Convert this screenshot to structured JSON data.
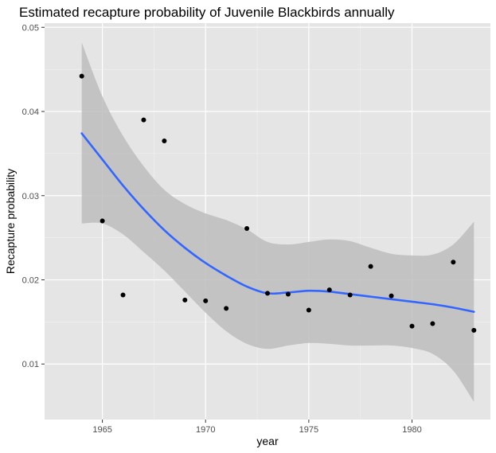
{
  "chart_data": {
    "type": "scatter",
    "title": "Estimated recapture probability of Juvenile Blackbirds annually",
    "xlabel": "year",
    "ylabel": "Recapture probability",
    "xlim": [
      1962.2,
      1983.8
    ],
    "ylim": [
      0.0034,
      0.0505
    ],
    "x_ticks": [
      1965,
      1970,
      1975,
      1980
    ],
    "x_tick_labels": [
      "1965",
      "1970",
      "1975",
      "1980"
    ],
    "y_ticks": [
      0.01,
      0.02,
      0.03,
      0.04,
      0.05
    ],
    "y_tick_labels": [
      "0.01",
      "0.02",
      "0.03",
      "0.04",
      "0.05"
    ],
    "grid": true,
    "legend": "none",
    "colors": {
      "panel": "#e5e5e5",
      "grid_major": "#ffffff",
      "points": "#000000",
      "smooth_line": "#3366ff",
      "ribbon": "#bdbdbd"
    },
    "points": {
      "x": [
        1964,
        1965,
        1966,
        1967,
        1968,
        1969,
        1970,
        1971,
        1972,
        1973,
        1974,
        1975,
        1976,
        1977,
        1978,
        1979,
        1980,
        1981,
        1982,
        1983
      ],
      "y": [
        0.0442,
        0.027,
        0.0182,
        0.039,
        0.0365,
        0.0176,
        0.0175,
        0.0166,
        0.0261,
        0.0184,
        0.0183,
        0.0164,
        0.0188,
        0.0182,
        0.0216,
        0.0181,
        0.0145,
        0.0148,
        0.0221,
        0.014
      ]
    },
    "smooth": {
      "x": [
        1964,
        1965,
        1966,
        1967,
        1968,
        1969,
        1970,
        1971,
        1972,
        1973,
        1974,
        1975,
        1976,
        1977,
        1978,
        1979,
        1980,
        1981,
        1982,
        1983
      ],
      "y": [
        0.0374,
        0.0343,
        0.0312,
        0.0284,
        0.0259,
        0.0238,
        0.022,
        0.0205,
        0.0192,
        0.0184,
        0.0185,
        0.0187,
        0.0186,
        0.0183,
        0.018,
        0.0177,
        0.0174,
        0.0171,
        0.0167,
        0.0162
      ],
      "upper": [
        0.0482,
        0.0418,
        0.0371,
        0.0335,
        0.0307,
        0.029,
        0.0279,
        0.0271,
        0.026,
        0.0245,
        0.0242,
        0.0245,
        0.0248,
        0.0246,
        0.0238,
        0.0231,
        0.0229,
        0.023,
        0.0242,
        0.0269
      ],
      "lower": [
        0.0267,
        0.0267,
        0.0254,
        0.0233,
        0.0211,
        0.0186,
        0.0161,
        0.0139,
        0.0124,
        0.0118,
        0.0122,
        0.0125,
        0.0124,
        0.0122,
        0.0122,
        0.0122,
        0.0119,
        0.0112,
        0.0092,
        0.0055
      ]
    }
  }
}
